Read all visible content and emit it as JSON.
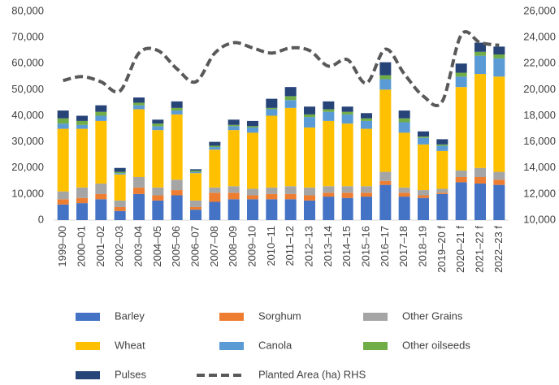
{
  "chart_data": {
    "type": "bar",
    "stacked": true,
    "categories": [
      "1999–00",
      "2000–01",
      "2001–02",
      "2002–03",
      "2003–04",
      "2004–05",
      "2005–06",
      "2006–07",
      "2007–08",
      "2008–09",
      "2009–10",
      "2010–11",
      "2011–12",
      "2012–13",
      "2013–14",
      "2014–15",
      "2015–16",
      "2016–17",
      "2017–18",
      "2018–19",
      "2019–20 f",
      "2020–21 f",
      "2021–22 f",
      "2022–23 f"
    ],
    "series": [
      {
        "name": "Barley",
        "color": "#4472c4",
        "values": [
          6000,
          6500,
          8000,
          3500,
          10000,
          7500,
          9500,
          4000,
          7000,
          8000,
          8000,
          8000,
          8000,
          7500,
          9000,
          8500,
          9000,
          13500,
          9000,
          8500,
          10000,
          14500,
          14000,
          13500
        ]
      },
      {
        "name": "Sorghum",
        "color": "#ed7d31",
        "values": [
          2000,
          2000,
          2000,
          1500,
          2500,
          2000,
          2000,
          1000,
          3500,
          2500,
          1500,
          2000,
          2000,
          2000,
          1500,
          2000,
          1500,
          1500,
          1500,
          1000,
          500,
          2000,
          2500,
          2000
        ]
      },
      {
        "name": "Other Grains",
        "color": "#a5a5a5",
        "values": [
          3000,
          4000,
          4000,
          2500,
          4000,
          3000,
          4000,
          2500,
          2000,
          2500,
          2500,
          2500,
          3000,
          3000,
          2500,
          2500,
          2500,
          3500,
          2000,
          2000,
          1500,
          2500,
          3500,
          3000
        ]
      },
      {
        "name": "Wheat",
        "color": "#ffc000",
        "values": [
          24000,
          22500,
          24000,
          10000,
          26000,
          22000,
          25000,
          10500,
          14500,
          21500,
          21500,
          27500,
          30000,
          23000,
          25000,
          24000,
          22000,
          31500,
          21000,
          17500,
          14500,
          32000,
          36000,
          36500
        ]
      },
      {
        "name": "Canola",
        "color": "#5b9bd5",
        "values": [
          2000,
          1500,
          2000,
          500,
          1500,
          1500,
          1500,
          500,
          1000,
          1500,
          2000,
          2500,
          3000,
          4000,
          3500,
          3500,
          3000,
          4000,
          4000,
          2500,
          2000,
          4000,
          7000,
          7000
        ]
      },
      {
        "name": "Other oilseeds",
        "color": "#70ad47",
        "values": [
          2000,
          1500,
          1500,
          500,
          1000,
          1000,
          1000,
          500,
          500,
          500,
          500,
          500,
          1500,
          1000,
          1000,
          1000,
          1000,
          1500,
          1500,
          500,
          500,
          1500,
          1500,
          1500
        ]
      },
      {
        "name": "Pulses",
        "color": "#264478",
        "values": [
          3000,
          2000,
          2500,
          1500,
          2000,
          1500,
          2500,
          500,
          1500,
          2000,
          2000,
          3500,
          3500,
          3000,
          3000,
          2000,
          2000,
          5000,
          3000,
          2000,
          2000,
          3500,
          3500,
          3000
        ]
      },
      {
        "name": "Planted Area (ha) RHS",
        "type": "line",
        "axis": "y2",
        "color": "#595959",
        "dashed": true,
        "values": [
          20700,
          21000,
          20600,
          19900,
          22800,
          23000,
          21600,
          20600,
          22800,
          23600,
          23200,
          22800,
          23200,
          23000,
          21800,
          22300,
          20500,
          23100,
          21200,
          19500,
          19100,
          24200,
          23600,
          23400
        ]
      }
    ],
    "ylim": [
      0,
      80000
    ],
    "yticks": [
      0,
      {
        "value": 10000,
        "label": "10,000"
      },
      {
        "value": 20000,
        "label": "20,000"
      },
      {
        "value": 30000,
        "label": "30,000"
      },
      {
        "value": 40000,
        "label": "40,000"
      },
      {
        "value": 50000,
        "label": "50,000"
      },
      {
        "value": 60000,
        "label": "60,000"
      },
      {
        "value": 70000,
        "label": "70,000"
      },
      {
        "value": 80000,
        "label": "80,000"
      }
    ],
    "y2lim": [
      10000,
      26000
    ],
    "y2ticks": [
      {
        "value": 10000,
        "label": "10,000"
      },
      {
        "value": 12000,
        "label": "12,000"
      },
      {
        "value": 14000,
        "label": "14,000"
      },
      {
        "value": 16000,
        "label": "16,000"
      },
      {
        "value": 18000,
        "label": "18,000"
      },
      {
        "value": 20000,
        "label": "20,000"
      },
      {
        "value": 22000,
        "label": "22,000"
      },
      {
        "value": 24000,
        "label": "24,000"
      },
      {
        "value": 26000,
        "label": "26,000"
      }
    ],
    "grid": false,
    "legend": "bottom"
  }
}
